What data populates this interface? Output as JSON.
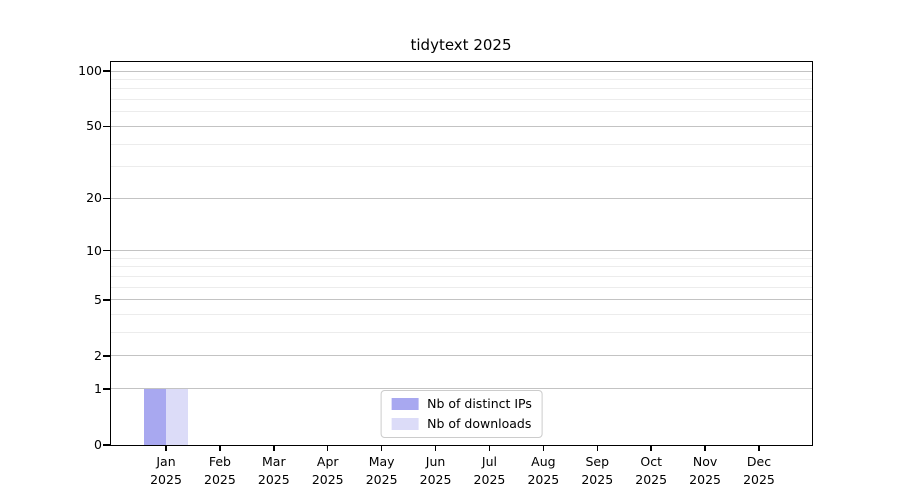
{
  "title": "tidytext 2025",
  "chart_data": {
    "type": "bar",
    "title": "tidytext 2025",
    "categories": [
      "Jan 2025",
      "Feb 2025",
      "Mar 2025",
      "Apr 2025",
      "May 2025",
      "Jun 2025",
      "Jul 2025",
      "Aug 2025",
      "Sep 2025",
      "Oct 2025",
      "Nov 2025",
      "Dec 2025"
    ],
    "x_tick_months": [
      "Jan",
      "Feb",
      "Mar",
      "Apr",
      "May",
      "Jun",
      "Jul",
      "Aug",
      "Sep",
      "Oct",
      "Nov",
      "Dec"
    ],
    "x_tick_year": "2025",
    "series": [
      {
        "name": "Nb of distinct IPs",
        "color": "#a8a8f0",
        "values": [
          1,
          0,
          0,
          0,
          0,
          0,
          0,
          0,
          0,
          0,
          0,
          0
        ]
      },
      {
        "name": "Nb of downloads",
        "color": "#dcdcf8",
        "values": [
          1,
          0,
          0,
          0,
          0,
          0,
          0,
          0,
          0,
          0,
          0,
          0
        ]
      }
    ],
    "xlabel": "",
    "ylabel": "",
    "yscale": "log1p",
    "ylim": [
      0,
      112
    ],
    "ytick_values": [
      0,
      1,
      2,
      5,
      10,
      20,
      50,
      100
    ],
    "ytick_labels": [
      "0",
      "1",
      "2",
      "5",
      "10",
      "20",
      "50",
      "100"
    ],
    "major_grid_values": [
      1,
      2,
      5,
      10,
      20,
      50,
      100
    ],
    "minor_grid_values": [
      3,
      4,
      6,
      7,
      8,
      9,
      30,
      40,
      60,
      70,
      80,
      90
    ],
    "grid": true,
    "legend_position": "lower center",
    "legend_entries": [
      "Nb of distinct IPs",
      "Nb of downloads"
    ]
  },
  "colors": {
    "series_distinct_ips": "#a8a8f0",
    "series_downloads": "#dcdcf8",
    "major_grid": "#c3c3c3",
    "minor_grid": "#ececec",
    "axis": "#000000",
    "legend_border": "#cccccc",
    "background": "#ffffff"
  }
}
